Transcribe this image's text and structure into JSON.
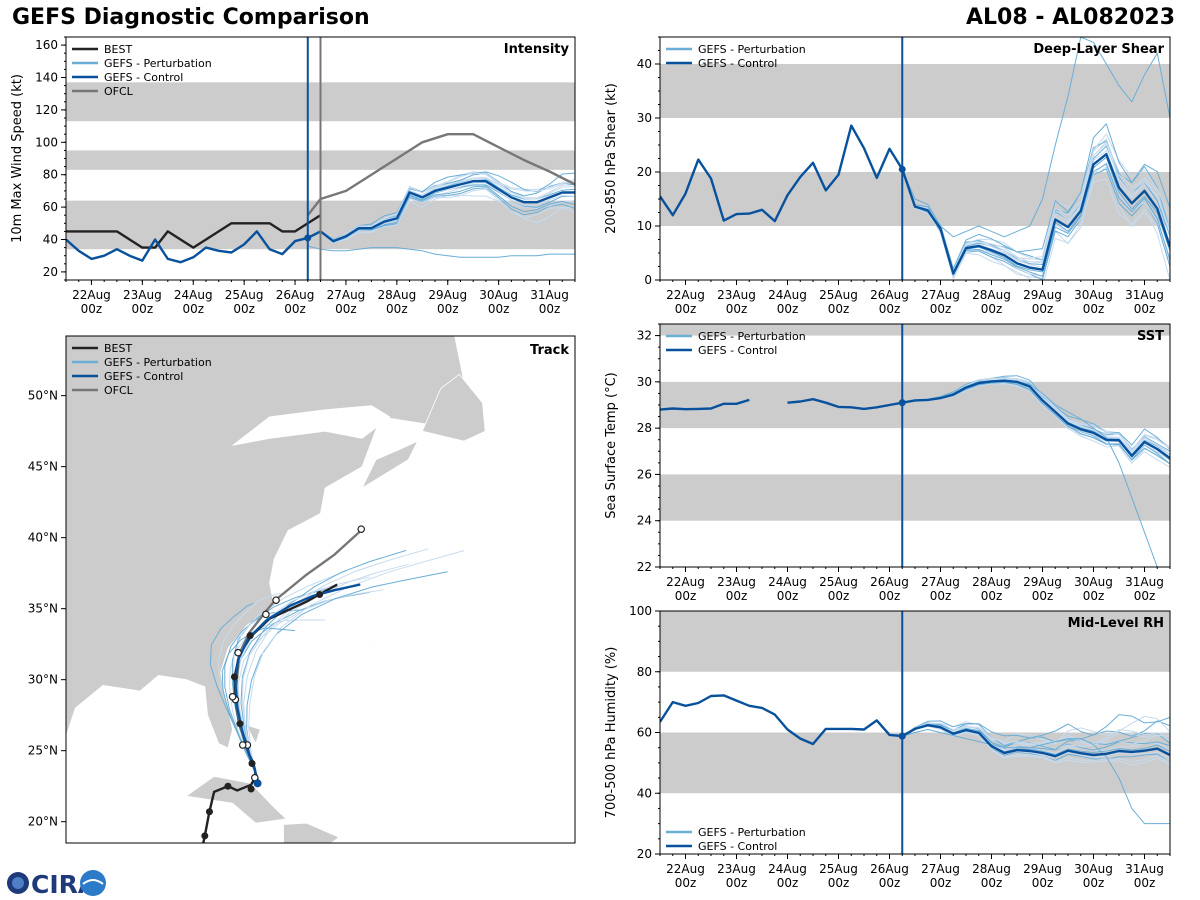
{
  "header": {
    "title": "GEFS Diagnostic Comparison",
    "storm_id": "AL08 - AL082023"
  },
  "time_axis": {
    "labels": [
      "22Aug\n00z",
      "23Aug\n00z",
      "24Aug\n00z",
      "25Aug\n00z",
      "26Aug\n00z",
      "27Aug\n00z",
      "28Aug\n00z",
      "29Aug\n00z",
      "30Aug\n00z",
      "31Aug\n00z"
    ],
    "start_day": 21.5,
    "end_day": 31.5,
    "init_day": 26.25
  },
  "colors": {
    "best": "#222222",
    "pert": "#6baed6",
    "pert_light": "#c6dbef",
    "control": "#08519c",
    "ofcl": "#777777",
    "band": "#cccccc",
    "land": "#cccccc"
  },
  "legend": {
    "best": "BEST",
    "pert": "GEFS - Perturbation",
    "control": "GEFS - Control",
    "ofcl": "OFCL"
  },
  "logo": {
    "text": "CIRA"
  },
  "chart_data": [
    {
      "id": "intensity",
      "type": "line",
      "title": "Intensity",
      "ylabel": "10m Max Wind Speed (kt)",
      "ylim": [
        15,
        165
      ],
      "yticks": [
        20,
        40,
        60,
        80,
        100,
        120,
        140,
        160
      ],
      "bands": [
        [
          34,
          64
        ],
        [
          83,
          95
        ],
        [
          113,
          137
        ]
      ],
      "ofcl_line_day": 26.5,
      "series": [
        {
          "name": "BEST",
          "x": [
            21.5,
            22.0,
            22.25,
            22.5,
            22.75,
            23.0,
            23.25,
            23.5,
            23.75,
            24.0,
            24.25,
            24.5,
            24.75,
            25.0,
            25.25,
            25.5,
            25.75,
            26.0,
            26.25,
            26.5
          ],
          "y": [
            45,
            45,
            45,
            45,
            40,
            35,
            35,
            45,
            40,
            35,
            40,
            45,
            50,
            50,
            50,
            50,
            45,
            45,
            50,
            55
          ]
        },
        {
          "name": "GEFS - Control",
          "x": [
            21.5,
            21.75,
            22.0,
            22.25,
            22.5,
            22.75,
            23.0,
            23.25,
            23.5,
            23.75,
            24.0,
            24.25,
            24.5,
            24.75,
            25.0,
            25.25,
            25.5,
            25.75,
            26.0,
            26.25,
            26.5,
            26.75,
            27.0,
            27.25,
            27.5,
            27.75,
            28.0,
            28.25,
            28.5,
            28.75,
            29.0,
            29.25,
            29.5,
            29.75,
            30.0,
            30.25,
            30.5,
            30.75,
            31.0,
            31.25,
            31.5
          ],
          "y": [
            40,
            33,
            28,
            30,
            34,
            30,
            27,
            40,
            28,
            26,
            29,
            35,
            33,
            32,
            37,
            45,
            34,
            31,
            39,
            41,
            45,
            39,
            42,
            47,
            47,
            51,
            53,
            69,
            66,
            70,
            72,
            74,
            76,
            76,
            71,
            66,
            63,
            63,
            66,
            69,
            69
          ]
        },
        {
          "name": "OFCL",
          "x": [
            26.25,
            26.5,
            27.0,
            27.5,
            28.0,
            28.5,
            29.0,
            29.5,
            30.0,
            30.5,
            31.0,
            31.5
          ],
          "y": [
            55,
            65,
            70,
            80,
            90,
            100,
            105,
            105,
            97,
            89,
            82,
            74
          ]
        }
      ],
      "ensemble": {
        "x0": 26.25,
        "dx": 0.25,
        "base": [
          41,
          45,
          39,
          42,
          47,
          47,
          51,
          53,
          69,
          66,
          70,
          72,
          74,
          76,
          76,
          71,
          66,
          63,
          63,
          66,
          69,
          69
        ],
        "offsets": [
          -12,
          -8,
          -5,
          -3,
          -2,
          2,
          4,
          6,
          8,
          10,
          -10,
          0,
          3,
          -6,
          7
        ],
        "low_member": [
          36,
          34,
          33,
          33,
          34,
          35,
          35,
          35,
          34,
          33,
          31,
          30,
          29,
          29,
          29,
          29,
          30,
          30,
          30,
          31,
          31,
          31
        ]
      }
    },
    {
      "id": "shear",
      "type": "line",
      "title": "Deep-Layer Shear",
      "ylabel": "200-850 hPa Shear (kt)",
      "ylim": [
        0,
        45
      ],
      "yticks": [
        0,
        10,
        20,
        30,
        40
      ],
      "bands": [
        [
          10,
          20
        ],
        [
          30,
          40
        ]
      ],
      "series": [
        {
          "name": "GEFS - Control",
          "x": [
            21.5,
            21.75,
            22.0,
            22.25,
            22.5,
            22.75,
            23.0,
            23.25,
            23.5,
            23.75,
            24.0,
            24.25,
            24.5,
            24.75,
            25.0,
            25.25,
            25.5,
            25.75,
            26.0,
            26.25,
            26.5,
            26.75,
            27.0,
            27.25,
            27.5,
            27.75,
            28.0,
            28.25,
            28.5,
            28.75,
            29.0,
            29.25,
            29.5,
            29.75,
            30.0,
            30.25,
            30.5,
            30.75,
            31.0,
            31.25,
            31.5
          ],
          "y": [
            15.5,
            12,
            16,
            22.3,
            18.8,
            11,
            12.2,
            12.3,
            13,
            10.9,
            15.7,
            19.1,
            21.7,
            16.6,
            19.5,
            28.6,
            24.4,
            18.9,
            24.3,
            20.5,
            13.6,
            12.9,
            9.5,
            1.2,
            5.9,
            6.3,
            5.5,
            4.6,
            3.1,
            2.3,
            1.9,
            11.2,
            9.8,
            12.8,
            21.4,
            23.3,
            17.1,
            14.2,
            16.5,
            13.2,
            6.1
          ]
        }
      ],
      "ensemble": {
        "x0": 26.25,
        "dx": 0.25,
        "base": [
          20.5,
          13.6,
          12.9,
          9.5,
          1.2,
          5.9,
          6.3,
          5.5,
          4.6,
          3.1,
          2.3,
          1.9,
          11.2,
          9.8,
          12.8,
          21.4,
          23.3,
          17.1,
          14.2,
          16.5,
          13.2,
          6.1
        ],
        "offsets": [
          -4,
          -3,
          -2,
          -1,
          1,
          2,
          3,
          4,
          5,
          6,
          -5,
          0,
          2,
          -2,
          3
        ],
        "high_member": [
          20.5,
          15,
          14,
          10,
          8,
          9,
          10,
          9,
          8,
          9,
          10,
          15,
          25,
          34,
          45,
          44,
          40,
          36,
          33,
          38,
          42,
          30
        ]
      }
    },
    {
      "id": "sst",
      "type": "line",
      "title": "SST",
      "ylabel": "Sea Surface Temp (°C)",
      "ylim": [
        22,
        32.5
      ],
      "yticks": [
        22,
        24,
        26,
        28,
        30,
        32
      ],
      "bands": [
        [
          24,
          26
        ],
        [
          28,
          30
        ],
        [
          32,
          32.5
        ]
      ],
      "series": [
        {
          "name": "GEFS - Control",
          "x": [
            21.5,
            21.75,
            22.0,
            22.25,
            22.5,
            22.75,
            23.0,
            23.25,
            23.5
          ],
          "y": [
            28.8,
            28.85,
            28.82,
            28.83,
            28.85,
            29.05,
            29.05,
            29.22,
            null
          ]
        },
        {
          "name": "GEFS - Control",
          "x": [
            24.0,
            24.25,
            24.5,
            24.75,
            25.0,
            25.25,
            25.5,
            25.75,
            26.0,
            26.25,
            26.5,
            26.75,
            27.0,
            27.25,
            27.5,
            27.75,
            28.0,
            28.25,
            28.5,
            28.75,
            29.0,
            29.25,
            29.5,
            29.75,
            30.0,
            30.25,
            30.5,
            30.75,
            31.0,
            31.25,
            31.5
          ],
          "y": [
            29.1,
            29.15,
            29.25,
            29.1,
            28.92,
            28.9,
            28.83,
            28.9,
            29.0,
            29.1,
            29.2,
            29.22,
            29.3,
            29.45,
            29.75,
            29.95,
            30.02,
            30.05,
            30.0,
            29.8,
            29.2,
            28.7,
            28.2,
            27.95,
            27.8,
            27.5,
            27.48,
            26.8,
            27.4,
            27.1,
            26.7
          ]
        }
      ],
      "ensemble": {
        "x0": 26.25,
        "dx": 0.25,
        "base": [
          29.1,
          29.2,
          29.22,
          29.3,
          29.45,
          29.75,
          29.95,
          30.02,
          30.05,
          30.0,
          29.8,
          29.2,
          28.7,
          28.2,
          27.95,
          27.8,
          27.5,
          27.48,
          26.8,
          27.4,
          27.1,
          26.7
        ],
        "offsets": [
          -0.3,
          -0.2,
          -0.1,
          0.1,
          0.2,
          0.3,
          0.4,
          0.5,
          -0.4,
          0,
          0.15,
          -0.25,
          0.35,
          -0.05,
          0.25
        ],
        "drop_member": [
          29.1,
          29.2,
          29.25,
          29.35,
          29.5,
          29.8,
          30.0,
          30.05,
          30.05,
          30.0,
          29.9,
          29.5,
          29.0,
          28.7,
          28.4,
          28.0,
          27.6,
          26.5,
          25.0,
          23.5,
          22.0,
          21.0
        ]
      }
    },
    {
      "id": "rh",
      "type": "line",
      "title": "Mid-Level RH",
      "ylabel": "700-500 hPa Humidity (%)",
      "ylim": [
        20,
        100
      ],
      "yticks": [
        20,
        40,
        60,
        80,
        100
      ],
      "bands": [
        [
          40,
          60
        ],
        [
          80,
          100
        ]
      ],
      "series": [
        {
          "name": "GEFS - Control",
          "x": [
            21.5,
            21.75,
            22.0,
            22.25,
            22.5,
            22.75,
            23.0,
            23.25,
            23.5,
            23.75,
            24.0,
            24.25,
            24.5,
            24.75,
            25.0,
            25.25,
            25.5,
            25.75,
            26.0,
            26.25,
            26.5,
            26.75,
            27.0,
            27.25,
            27.5,
            27.75,
            28.0,
            28.25,
            28.5,
            28.75,
            29.0,
            29.25,
            29.5,
            29.75,
            30.0,
            30.25,
            30.5,
            30.75,
            31.0,
            31.25,
            31.5
          ],
          "y": [
            63.5,
            70,
            68.8,
            69.7,
            72,
            72.2,
            70.5,
            68.8,
            68.1,
            65.9,
            61,
            58,
            56.2,
            61.2,
            61.2,
            61.2,
            61,
            64,
            59.2,
            58.8,
            61.2,
            62.4,
            61.7,
            59.6,
            60.8,
            59.9,
            55.5,
            53.3,
            54.2,
            53.9,
            53.3,
            52.2,
            54,
            53.2,
            52.6,
            53,
            53.9,
            53.6,
            54,
            54.7,
            52.6
          ]
        }
      ],
      "ensemble": {
        "x0": 26.25,
        "dx": 0.25,
        "base": [
          58.8,
          61.2,
          62.4,
          61.7,
          59.6,
          60.8,
          59.9,
          55.5,
          53.3,
          54.2,
          53.9,
          53.3,
          52.2,
          54,
          53.2,
          52.6,
          53,
          53.9,
          53.6,
          54,
          54.7,
          52.6
        ],
        "offsets": [
          -4,
          -2,
          -1,
          1,
          2,
          3,
          4,
          5,
          6,
          8,
          10,
          12,
          -3,
          0,
          7
        ],
        "drop_member": [
          58.8,
          60,
          61,
          60,
          59,
          58,
          57,
          56,
          55,
          55,
          55,
          56,
          57,
          58,
          58,
          56,
          52,
          45,
          35,
          30,
          30,
          30
        ]
      }
    },
    {
      "id": "track",
      "type": "scatter",
      "title": "Track",
      "lon_range": [
        -98,
        -43
      ],
      "lat_range": [
        18.5,
        54.2
      ],
      "lat_ticks": [
        20,
        25,
        30,
        35,
        40,
        45,
        50
      ],
      "lat_labels": [
        "20°N",
        "25°N",
        "30°N",
        "35°N",
        "40°N",
        "45°N",
        "50°N"
      ],
      "best": [
        [
          -83.5,
          17.5
        ],
        [
          -83,
          19
        ],
        [
          -82.5,
          20.7
        ],
        [
          -82,
          22.1
        ],
        [
          -80.5,
          22.5
        ],
        [
          -79.5,
          22.2
        ],
        [
          -78,
          22.6
        ],
        [
          -77.5,
          23.2
        ],
        [
          -77.6,
          23.7
        ],
        [
          -77.8,
          24.2
        ],
        [
          -78.2,
          24.7
        ],
        [
          -78.5,
          25.5
        ],
        [
          -79.3,
          26.9
        ],
        [
          -79.7,
          28.6
        ],
        [
          -79.8,
          30.1
        ],
        [
          -79.3,
          31.7
        ],
        [
          -78.1,
          33
        ],
        [
          -76,
          34.3
        ],
        [
          -72,
          35.5
        ],
        [
          -68.7,
          36.7
        ]
      ],
      "best_marks": [
        [
          -83,
          19
        ],
        [
          -82.5,
          20.7
        ],
        [
          -80.5,
          22.5
        ],
        [
          -78,
          22.3
        ],
        [
          -77.9,
          24.1
        ],
        [
          -79.2,
          26.9
        ],
        [
          -79.8,
          30.2
        ],
        [
          -78.1,
          33.1
        ],
        [
          -70.6,
          36.0
        ]
      ],
      "ofcl": [
        [
          -77.2,
          22.8
        ],
        [
          -77.6,
          23.6
        ],
        [
          -78.6,
          25.4
        ],
        [
          -79.3,
          27.1
        ],
        [
          -79.7,
          28.8
        ],
        [
          -79.5,
          30.2
        ],
        [
          -79.3,
          31.8
        ],
        [
          -78.2,
          33.3
        ],
        [
          -76.3,
          34.9
        ],
        [
          -75.4,
          35.6
        ],
        [
          -72,
          37.4
        ],
        [
          -69,
          38.8
        ],
        [
          -66.3,
          40.4
        ]
      ],
      "ofcl_marks": [
        [
          -77.6,
          23.1
        ],
        [
          -78.4,
          25.4
        ],
        [
          -78.9,
          25.4
        ],
        [
          -79.7,
          28.6
        ],
        [
          -80.0,
          28.8
        ],
        [
          -79.4,
          31.9
        ],
        [
          -76.4,
          34.6
        ],
        [
          -75.3,
          35.6
        ],
        [
          -66.1,
          40.6
        ]
      ],
      "control": [
        [
          -77.3,
          22.7
        ],
        [
          -77.6,
          23.7
        ],
        [
          -78.3,
          24.9
        ],
        [
          -79,
          26.5
        ],
        [
          -79.5,
          28.1
        ],
        [
          -79.7,
          29.8
        ],
        [
          -79.4,
          31.4
        ],
        [
          -78.3,
          32.9
        ],
        [
          -76.3,
          34.2
        ],
        [
          -73.8,
          35.2
        ],
        [
          -71.3,
          35.9
        ],
        [
          -69,
          36.3
        ],
        [
          -66.2,
          36.7
        ]
      ],
      "cities_unused": []
    }
  ]
}
